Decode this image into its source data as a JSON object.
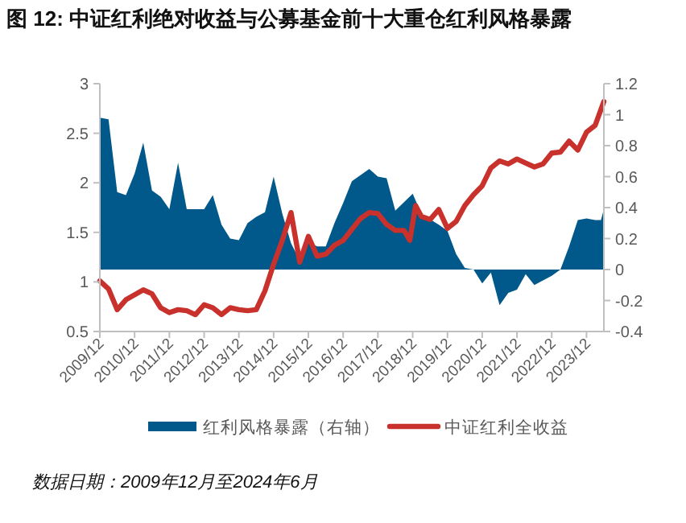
{
  "chart_data": {
    "type": "line",
    "title": "图 12: 中证红利绝对收益与公募基金前十大重仓红利风格暴露",
    "xlim": [
      "2009-12",
      "2024-06"
    ],
    "xticks": [
      {
        "value": "2009-12",
        "label": "2009/12"
      },
      {
        "value": "2010-12",
        "label": "2010/12"
      },
      {
        "value": "2011-12",
        "label": "2011/12"
      },
      {
        "value": "2012-12",
        "label": "2012/12"
      },
      {
        "value": "2013-12",
        "label": "2013/12"
      },
      {
        "value": "2014-12",
        "label": "2014/12"
      },
      {
        "value": "2015-12",
        "label": "2015/12"
      },
      {
        "value": "2016-12",
        "label": "2016/12"
      },
      {
        "value": "2017-12",
        "label": "2017/12"
      },
      {
        "value": "2018-12",
        "label": "2018/12"
      },
      {
        "value": "2019-12",
        "label": "2019/12"
      },
      {
        "value": "2020-12",
        "label": "2020/12"
      },
      {
        "value": "2021-12",
        "label": "2021/12"
      },
      {
        "value": "2022-12",
        "label": "2022/12"
      },
      {
        "value": "2023-12",
        "label": "2023/12"
      }
    ],
    "ylim": [
      0.5,
      3
    ],
    "yticks": [
      0.5,
      1,
      1.5,
      2,
      2.5,
      3
    ],
    "y2lim": [
      -0.4,
      1.2
    ],
    "y2ticks": [
      -0.4,
      -0.2,
      0,
      0.2,
      0.4,
      0.6,
      0.8,
      1,
      1.2
    ],
    "legend": "bottom",
    "grid": false,
    "series": [
      {
        "name": "红利风格暴露（右轴）",
        "type": "area",
        "axis": "y2",
        "color": "#00598a",
        "x": [
          "2009-12",
          "2010-03",
          "2010-06",
          "2010-09",
          "2010-12",
          "2011-03",
          "2011-06",
          "2011-09",
          "2011-12",
          "2012-03",
          "2012-06",
          "2012-12",
          "2013-03",
          "2013-06",
          "2013-09",
          "2013-12",
          "2014-03",
          "2014-06",
          "2014-09",
          "2014-12",
          "2015-03",
          "2015-06",
          "2015-09",
          "2015-12",
          "2016-03",
          "2016-06",
          "2016-09",
          "2016-12",
          "2017-03",
          "2017-09",
          "2017-12",
          "2018-03",
          "2018-06",
          "2018-12",
          "2019-03",
          "2019-09",
          "2019-12",
          "2020-03",
          "2020-06",
          "2020-09",
          "2020-12",
          "2021-03",
          "2021-06",
          "2021-09",
          "2021-12",
          "2022-03",
          "2022-06",
          "2022-12",
          "2023-03",
          "2023-06",
          "2023-09",
          "2023-12",
          "2024-03",
          "2024-05",
          "2024-06"
        ],
        "values": [
          0.98,
          0.97,
          0.5,
          0.48,
          0.62,
          0.82,
          0.51,
          0.47,
          0.39,
          0.69,
          0.39,
          0.39,
          0.48,
          0.29,
          0.2,
          0.19,
          0.3,
          0.34,
          0.37,
          0.6,
          0.36,
          0.17,
          0.06,
          0.18,
          0.15,
          0.15,
          0.3,
          0.43,
          0.57,
          0.65,
          0.6,
          0.59,
          0.38,
          0.49,
          0.36,
          0.29,
          0.25,
          0.1,
          0.01,
          0,
          -0.09,
          -0.02,
          -0.23,
          -0.15,
          -0.13,
          -0.03,
          -0.1,
          -0.04,
          0,
          0.15,
          0.32,
          0.33,
          0.32,
          0.32,
          0.39
        ]
      },
      {
        "name": "中证红利全收益",
        "type": "line",
        "color": "#c8312c",
        "x": [
          "2009-12",
          "2010-03",
          "2010-06",
          "2010-09",
          "2011-03",
          "2011-06",
          "2011-09",
          "2011-12",
          "2012-03",
          "2012-06",
          "2012-09",
          "2012-12",
          "2013-03",
          "2013-06",
          "2013-09",
          "2013-12",
          "2014-03",
          "2014-06",
          "2014-09",
          "2014-12",
          "2015-03",
          "2015-06",
          "2015-09",
          "2015-12",
          "2016-03",
          "2016-06",
          "2016-09",
          "2016-12",
          "2017-03",
          "2017-06",
          "2017-09",
          "2017-12",
          "2018-03",
          "2018-06",
          "2018-09",
          "2018-11",
          "2019-01",
          "2019-03",
          "2019-06",
          "2019-09",
          "2019-12",
          "2020-03",
          "2020-06",
          "2020-09",
          "2020-12",
          "2021-03",
          "2021-06",
          "2021-09",
          "2021-12",
          "2022-03",
          "2022-06",
          "2022-09",
          "2022-12",
          "2023-03",
          "2023-06",
          "2023-09",
          "2023-12",
          "2024-03",
          "2024-06"
        ],
        "values": [
          1.01,
          0.93,
          0.72,
          0.82,
          0.92,
          0.88,
          0.74,
          0.69,
          0.72,
          0.71,
          0.67,
          0.77,
          0.74,
          0.67,
          0.74,
          0.72,
          0.71,
          0.72,
          0.91,
          1.18,
          1.42,
          1.7,
          1.2,
          1.46,
          1.26,
          1.28,
          1.37,
          1.42,
          1.53,
          1.64,
          1.7,
          1.69,
          1.58,
          1.52,
          1.52,
          1.42,
          1.77,
          1.66,
          1.63,
          1.73,
          1.54,
          1.61,
          1.77,
          1.88,
          1.97,
          2.15,
          2.22,
          2.19,
          2.24,
          2.2,
          2.16,
          2.19,
          2.3,
          2.31,
          2.42,
          2.33,
          2.51,
          2.58,
          2.82
        ]
      }
    ],
    "annotations": [
      "数据日期：2009年12月至2024年6月"
    ]
  }
}
